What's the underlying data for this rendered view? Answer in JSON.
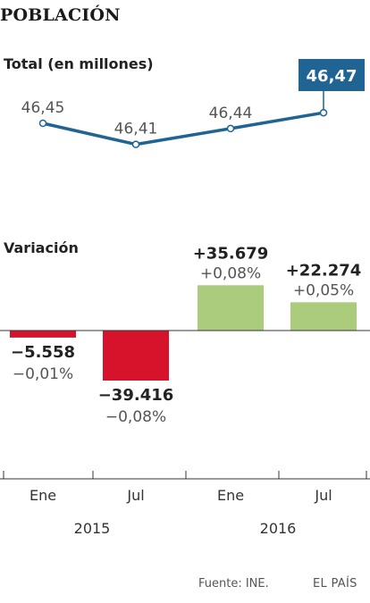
{
  "title": "POBLACIÓN",
  "footer": {
    "source": "Fuente: INE.",
    "brand": "EL PAÍS"
  },
  "colors": {
    "line": "#1f6493",
    "positive": "#abcb7d",
    "negative": "#d6132b",
    "highlight_text": "#ffffff",
    "axis": "#333333"
  },
  "chart_data": [
    {
      "type": "line",
      "title": "Total (en millones)",
      "x": [
        "Ene 2015",
        "Jul 2015",
        "Ene 2016",
        "Jul 2016"
      ],
      "values": [
        46.45,
        46.41,
        46.44,
        46.47
      ],
      "labels": [
        "46,45",
        "46,41",
        "46,44",
        "46,47"
      ],
      "highlight_index": 3
    },
    {
      "type": "bar",
      "title": "Variación",
      "categories": [
        "Ene 2015",
        "Jul 2015",
        "Ene 2016",
        "Jul 2016"
      ],
      "values": [
        -5558,
        -39416,
        35679,
        22274
      ],
      "labels": [
        "−5.558",
        "−39.416",
        "+35.679",
        "+22.274"
      ],
      "pct_labels": [
        "−0,01%",
        "−0,08%",
        "+0,08%",
        "+0,05%"
      ]
    }
  ],
  "x_axis": {
    "months": [
      "Ene",
      "Jul",
      "Ene",
      "Jul"
    ],
    "years": [
      "2015",
      "2016"
    ]
  }
}
